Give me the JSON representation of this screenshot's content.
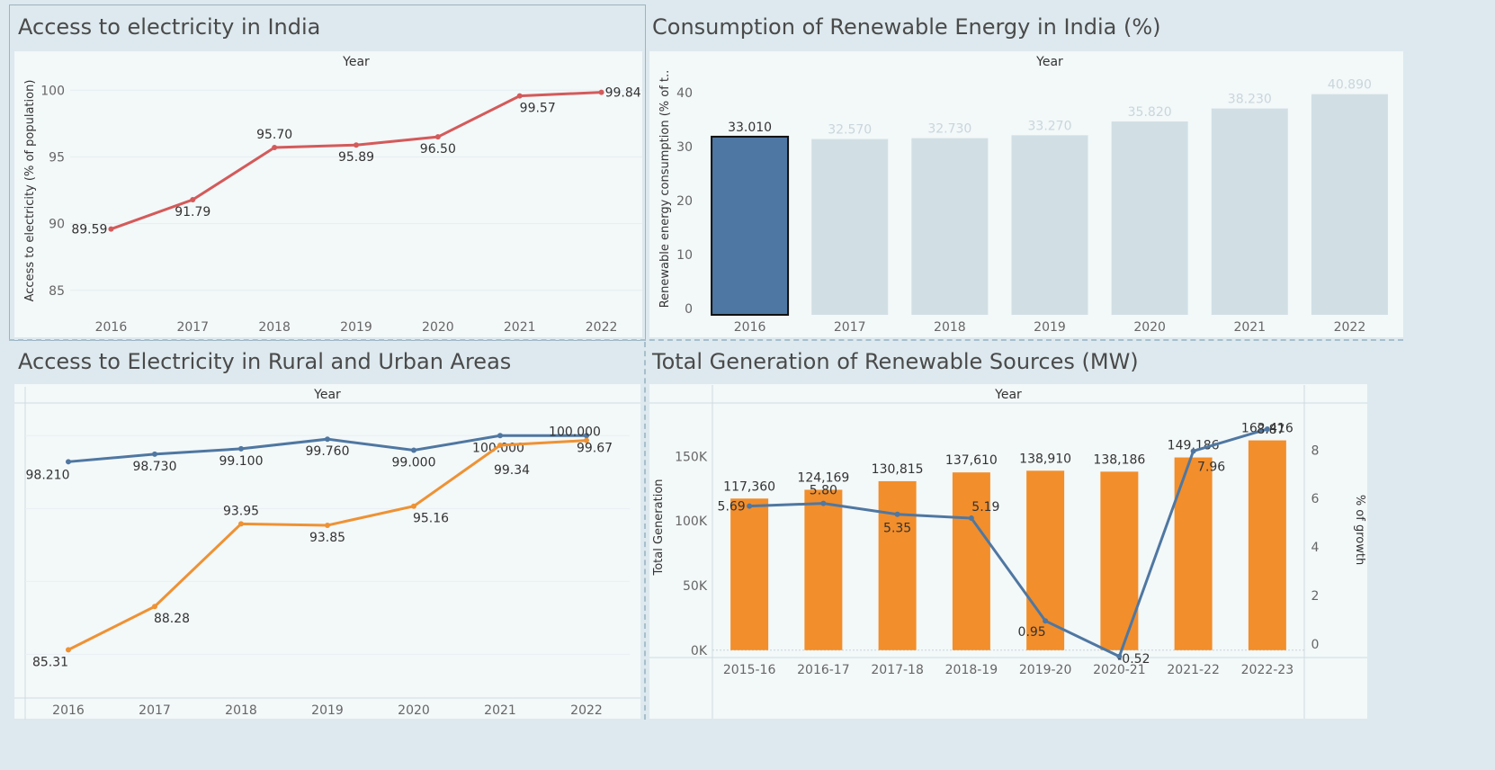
{
  "colors": {
    "red_line": "#d45a5a",
    "blue_bar": "#4e77a3",
    "grey_bar": "#d1dfe5",
    "blue_line": "#4f77a1",
    "orange_line": "#ee9234",
    "orange_bar": "#f28e2b",
    "axis_text": "#666666",
    "label_text": "#333333",
    "faded_label": "#c9d6dc"
  },
  "chart_data": [
    {
      "id": "electricity",
      "type": "line",
      "title": "Access to electricity in India",
      "column_header": "Year",
      "ylabel": "Access to electricity (% of population)",
      "x": [
        "2016",
        "2017",
        "2018",
        "2019",
        "2020",
        "2021",
        "2022"
      ],
      "series": [
        {
          "values": [
            89.59,
            91.79,
            95.7,
            95.89,
            96.5,
            99.57,
            99.84
          ],
          "labels": [
            "89.59",
            "91.79",
            "95.70",
            "95.89",
            "96.50",
            "99.57",
            "99.84"
          ]
        }
      ],
      "ylim": [
        83.5,
        101.5
      ],
      "yticks": [
        "85",
        "90",
        "95",
        "100"
      ],
      "grid": true
    },
    {
      "id": "renewable-consumption",
      "type": "bar",
      "title": "Consumption of Renewable Energy in India (%)",
      "column_header": "Year",
      "ylabel": "Renewable energy consumption (% of t..",
      "categories": [
        "2016",
        "2017",
        "2018",
        "2019",
        "2020",
        "2021",
        "2022"
      ],
      "values": [
        33.01,
        32.57,
        32.73,
        33.27,
        35.82,
        38.23,
        40.89
      ],
      "labels": [
        "33.010",
        "32.570",
        "32.730",
        "33.270",
        "35.820",
        "38.230",
        "40.890"
      ],
      "highlighted": "2016",
      "ylim": [
        0,
        45
      ],
      "yticks": [
        "0",
        "10",
        "20",
        "30",
        "40"
      ]
    },
    {
      "id": "rural-urban",
      "type": "line",
      "title": "Access to Electricity in Rural and Urban Areas",
      "column_header": "Year",
      "x": [
        "2016",
        "2017",
        "2018",
        "2019",
        "2020",
        "2021",
        "2022"
      ],
      "series": [
        {
          "values": [
            98.21,
            98.73,
            99.1,
            99.76,
            99.0,
            100.0,
            100.0
          ],
          "labels": [
            "98.210",
            "98.730",
            "99.100",
            "99.760",
            "99.000",
            "100.000",
            "100.000"
          ]
        },
        {
          "values": [
            85.31,
            88.28,
            93.95,
            93.85,
            95.16,
            99.34,
            99.67
          ],
          "labels": [
            "85.31",
            "88.28",
            "93.95",
            "93.85",
            "95.16",
            "99.34",
            "99.67"
          ]
        }
      ],
      "ylim": [
        82.0,
        101.5
      ]
    },
    {
      "id": "renewable-generation",
      "type": "bar",
      "title": "Total Generation of Renewable Sources (MW)",
      "column_header": "Year",
      "ylabel": "Total Generation",
      "y2label": "% of growth",
      "categories": [
        "2015-16",
        "2016-17",
        "2017-18",
        "2018-19",
        "2019-20",
        "2020-21",
        "2021-22",
        "2022-23"
      ],
      "bar_values": [
        117360,
        124169,
        130815,
        137610,
        138910,
        138186,
        149186,
        162416
      ],
      "bar_labels": [
        "117,360",
        "124,169",
        "130,815",
        "137,610",
        "138,910",
        "138,186",
        "149,186",
        "162,416"
      ],
      "line_values": [
        5.69,
        5.8,
        5.35,
        5.19,
        0.95,
        -0.52,
        7.96,
        8.87
      ],
      "line_labels": [
        "5.69",
        "5.80",
        "5.35",
        "5.19",
        "0.95",
        "-0.52",
        "7.96",
        "8.87"
      ],
      "ylim": [
        -12000,
        183000
      ],
      "y2lim": [
        -0.9,
        9.5
      ],
      "yticks": [
        "0K",
        "50K",
        "100K",
        "150K"
      ],
      "y2ticks": [
        "0",
        "2",
        "4",
        "6",
        "8"
      ]
    }
  ]
}
